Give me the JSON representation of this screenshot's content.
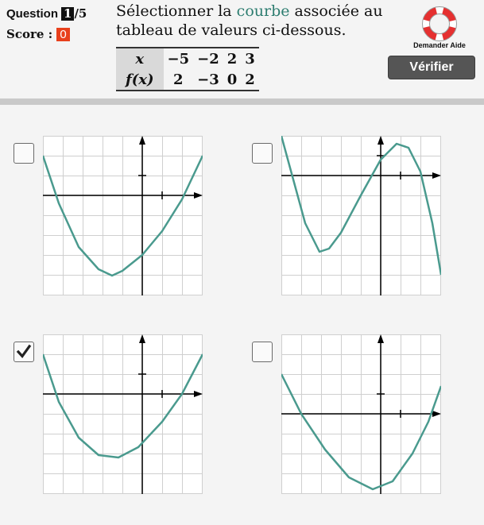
{
  "header": {
    "question_word": "Question",
    "question_number": "1",
    "question_total": "/5",
    "score_label": "Score :",
    "score_value": "0",
    "instruction_before": "Sélectionner la ",
    "instruction_highlight": "courbe",
    "instruction_after": " associée au tableau de valeurs ci-dessous.",
    "help_label": "Demander Aide",
    "verify_label": "Vérifier"
  },
  "table": {
    "row_x_label": "x",
    "row_f_label": "f(x)",
    "x_values": [
      "−5",
      "−2",
      "2",
      "3"
    ],
    "f_values": [
      "2",
      "−3",
      "0",
      "2"
    ]
  },
  "options": [
    {
      "id": "a",
      "checked": false
    },
    {
      "id": "b",
      "checked": false
    },
    {
      "id": "c",
      "checked": true
    },
    {
      "id": "d",
      "checked": false
    }
  ],
  "colors": {
    "curve": "#4a9a8e",
    "highlight": "#2d7d70",
    "score_badge": "#e8401c",
    "button": "#555555"
  },
  "icons": {
    "help": "lifebuoy-icon",
    "check": "checkmark-icon"
  }
}
